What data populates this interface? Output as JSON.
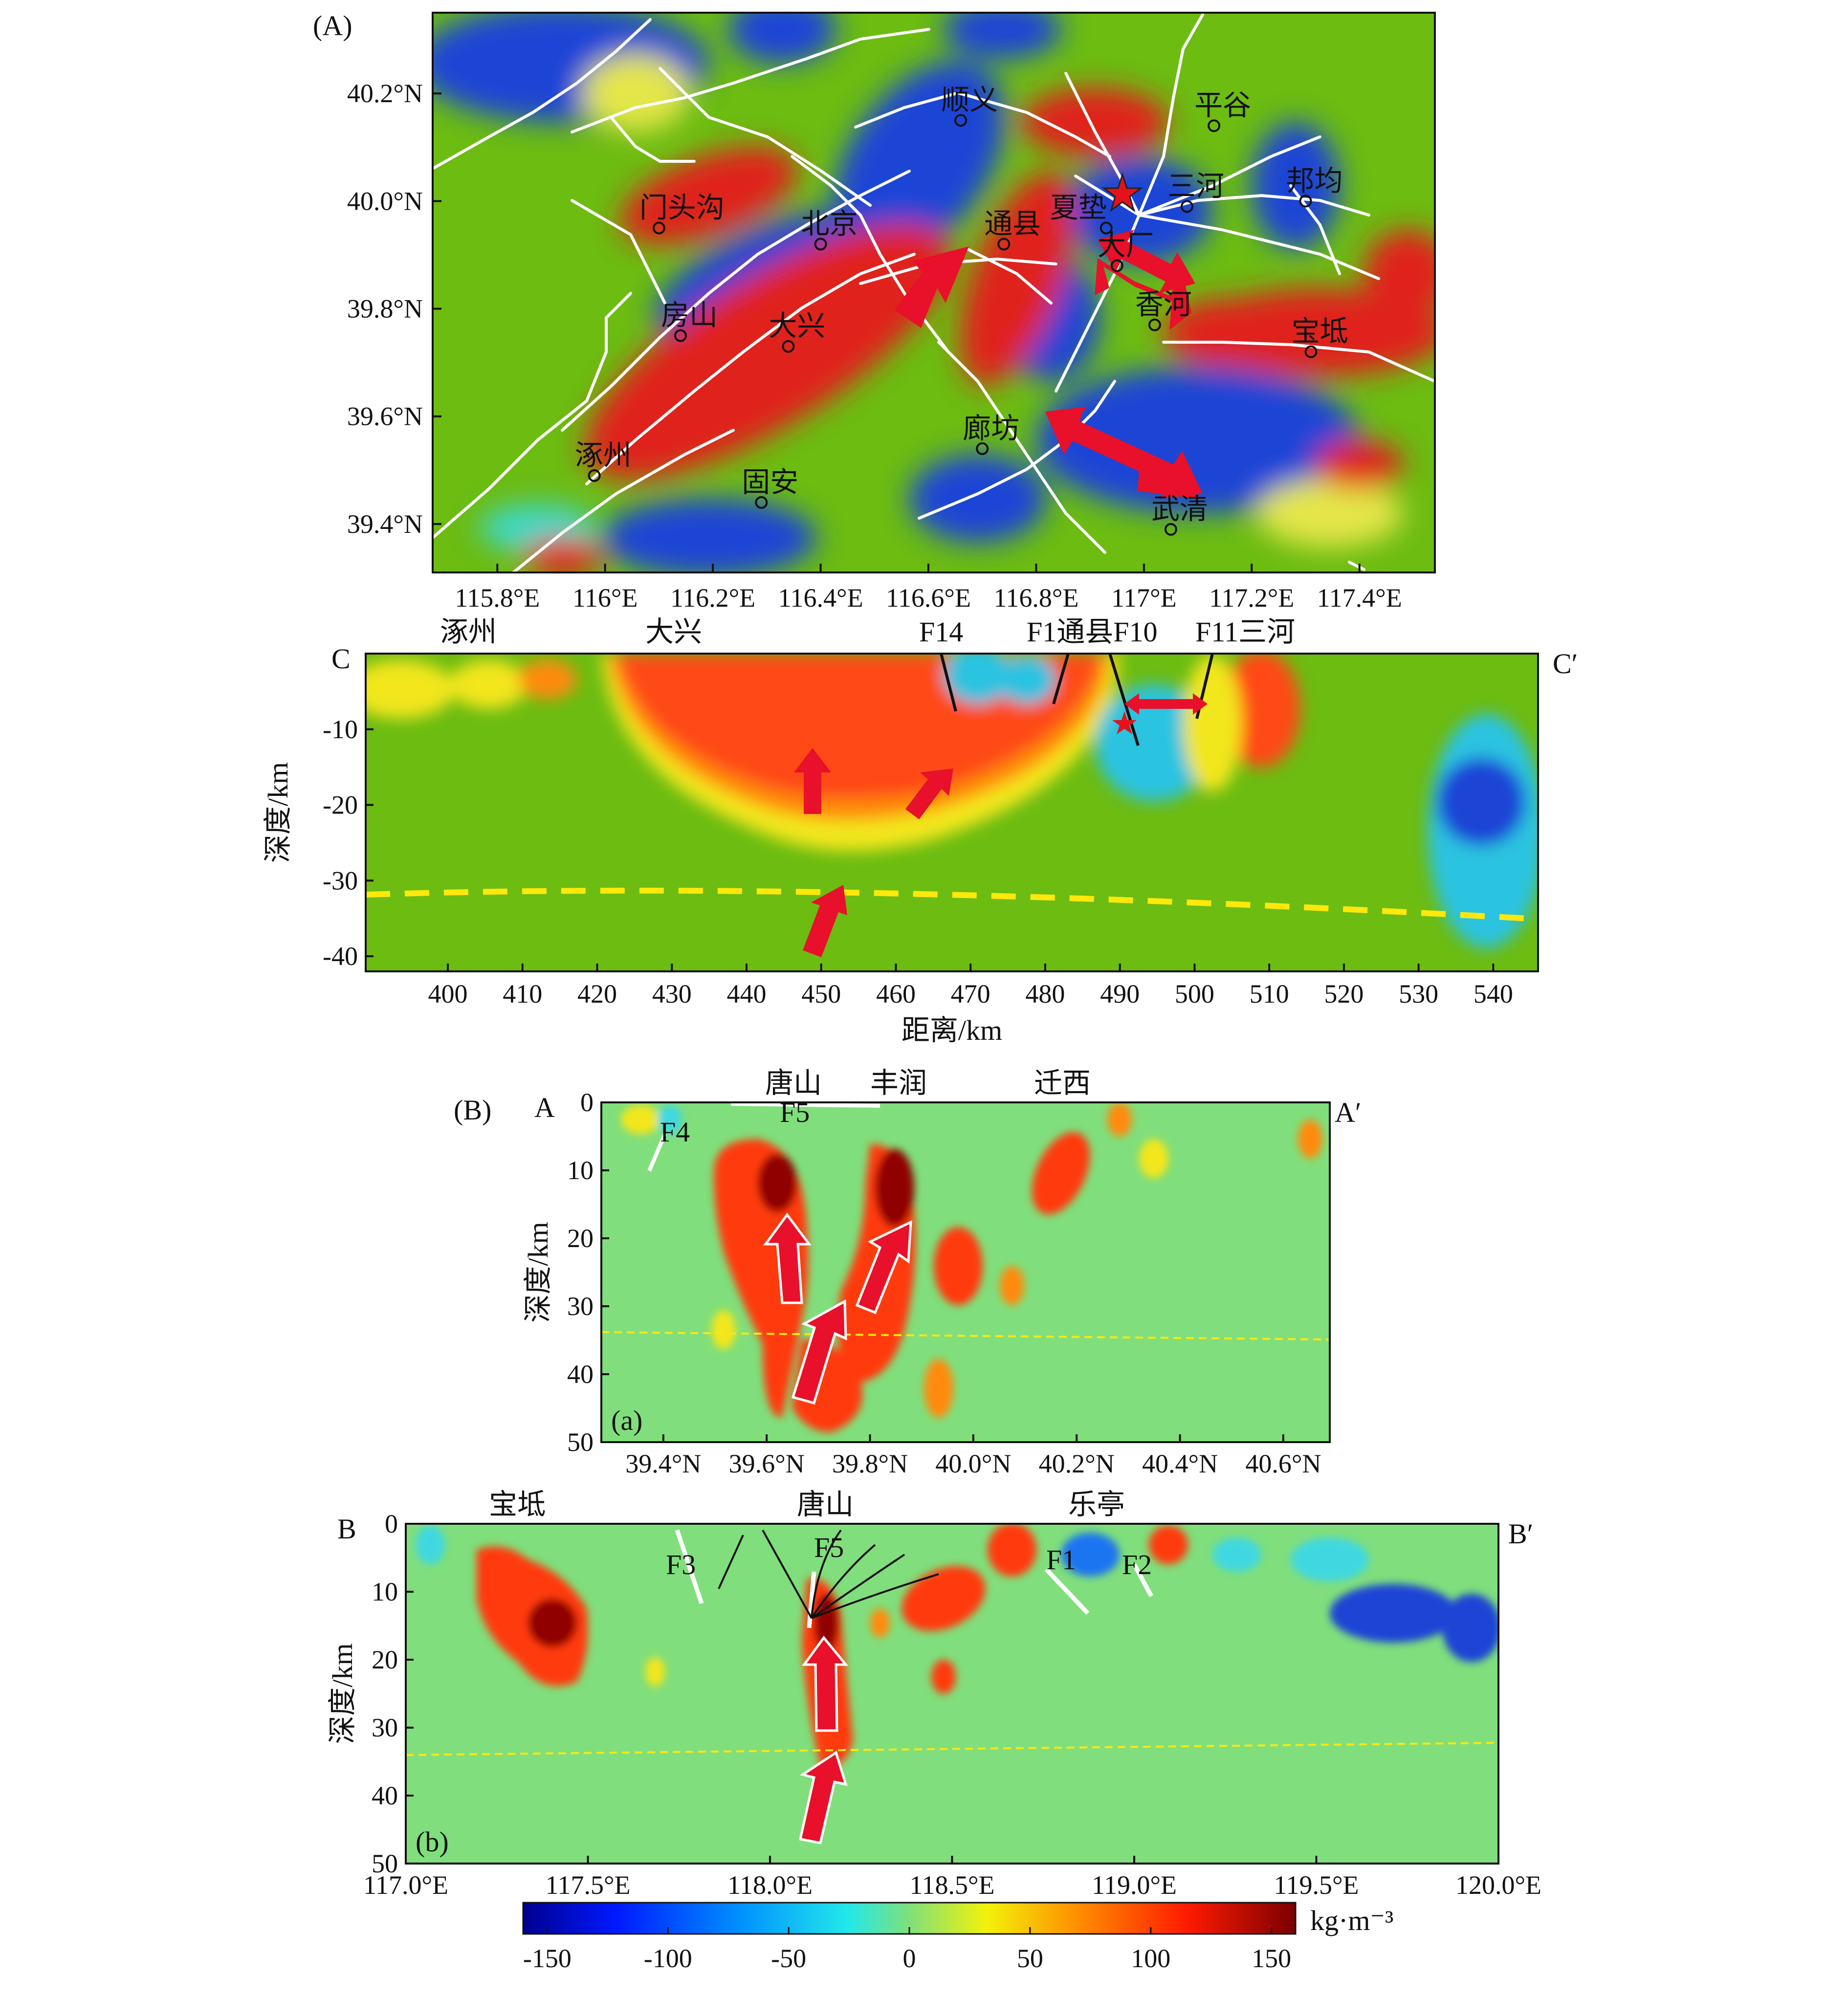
{
  "colors": {
    "background_green": "#6cbc12",
    "low_blue": "#1f45d6",
    "high_red": "#e0201a",
    "fault_line": "#ffffff",
    "moho_dashed": "#ffe80a",
    "arrow_red": "#e8102a",
    "star": "#e5121c"
  },
  "panelA": {
    "label": "(A)",
    "map": {
      "x_ticks": [
        "115.8°E",
        "116°E",
        "116.2°E",
        "116.4°E",
        "116.6°E",
        "116.8°E",
        "117°E",
        "117.2°E",
        "117.4°E"
      ],
      "y_ticks": [
        "40.2°N",
        "40.0°N",
        "39.8°N",
        "39.6°N",
        "39.4°N"
      ],
      "cities": [
        {
          "name": "顺义",
          "lon": 116.66,
          "lat": 40.15
        },
        {
          "name": "平谷",
          "lon": 117.13,
          "lat": 40.14
        },
        {
          "name": "门头沟",
          "lon": 116.1,
          "lat": 39.95
        },
        {
          "name": "北京",
          "lon": 116.4,
          "lat": 39.92
        },
        {
          "name": "通县",
          "lon": 116.74,
          "lat": 39.92
        },
        {
          "name": "夏垫",
          "lon": 116.93,
          "lat": 39.95
        },
        {
          "name": "三河",
          "lon": 117.08,
          "lat": 39.99
        },
        {
          "name": "邦均",
          "lon": 117.3,
          "lat": 40.0
        },
        {
          "name": "大厂",
          "lon": 116.95,
          "lat": 39.88
        },
        {
          "name": "房山",
          "lon": 116.14,
          "lat": 39.75
        },
        {
          "name": "大兴",
          "lon": 116.34,
          "lat": 39.73
        },
        {
          "name": "香河",
          "lon": 117.02,
          "lat": 39.77
        },
        {
          "name": "宝坻",
          "lon": 117.31,
          "lat": 39.72
        },
        {
          "name": "廊坊",
          "lon": 116.7,
          "lat": 39.54
        },
        {
          "name": "涿州",
          "lon": 115.98,
          "lat": 39.49
        },
        {
          "name": "固安",
          "lon": 116.29,
          "lat": 39.44
        },
        {
          "name": "武清",
          "lon": 117.05,
          "lat": 39.39
        }
      ],
      "epicenter_star": {
        "lon": 116.97,
        "lat": 40.0
      }
    },
    "section": {
      "start_label": "C",
      "end_label": "C′",
      "top_labels": [
        "涿州",
        "大兴",
        "F14",
        "F1通县F10",
        "F11三河"
      ],
      "x_ticks": [
        "400",
        "410",
        "420",
        "430",
        "440",
        "450",
        "460",
        "470",
        "480",
        "490",
        "500",
        "510",
        "520",
        "530",
        "540"
      ],
      "y_ticks": [
        "-10",
        "-20",
        "-30",
        "-40"
      ],
      "xlabel": "距离/km",
      "ylabel": "深度/km",
      "x_range_km": [
        389,
        546
      ],
      "depth_range_km": [
        0,
        -42
      ]
    }
  },
  "panelB": {
    "label": "(B)",
    "a": {
      "sublabel": "(a)",
      "start_label": "A",
      "end_label": "A′",
      "top_labels": [
        "唐山",
        "丰润",
        "迁西"
      ],
      "fault_labels": [
        "F4",
        "F5"
      ],
      "x_ticks": [
        "39.4°N",
        "39.6°N",
        "39.8°N",
        "40.0°N",
        "40.2°N",
        "40.4°N",
        "40.6°N"
      ],
      "y_ticks": [
        "0",
        "10",
        "20",
        "30",
        "40",
        "50"
      ],
      "ylabel": "深度/km",
      "x_range_deg": [
        39.28,
        40.69
      ],
      "depth_range_km": [
        0,
        50
      ]
    },
    "b": {
      "sublabel": "(b)",
      "start_label": "B",
      "end_label": "B′",
      "top_labels": [
        "宝坻",
        "唐山",
        "乐亭"
      ],
      "fault_labels": [
        "F3",
        "F5",
        "F1",
        "F2"
      ],
      "x_ticks": [
        "117.0°E",
        "117.5°E",
        "118.0°E",
        "118.5°E",
        "119.0°E",
        "119.5°E",
        "120.0°E"
      ],
      "y_ticks": [
        "0",
        "10",
        "20",
        "30",
        "40",
        "50"
      ],
      "ylabel": "深度/km",
      "x_range_deg": [
        117.0,
        120.0
      ],
      "depth_range_km": [
        0,
        50
      ]
    }
  },
  "colorbar": {
    "ticks": [
      "-150",
      "-100",
      "-50",
      "0",
      "50",
      "100",
      "150"
    ],
    "unit": "kg·m⁻³",
    "range": [
      -160,
      160
    ]
  }
}
